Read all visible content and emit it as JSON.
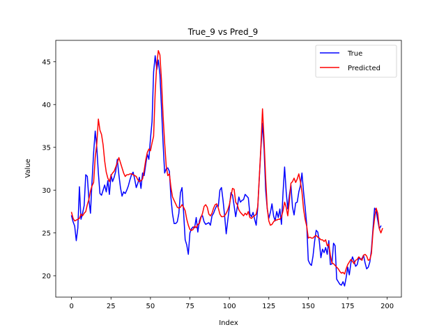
{
  "chart_data": {
    "type": "line",
    "title": "True_9 vs Pred_9",
    "xlabel": "Index",
    "ylabel": "Value",
    "xlim": [
      -10,
      209
    ],
    "ylim": [
      17.5,
      47.5
    ],
    "x_ticks": [
      0,
      25,
      50,
      75,
      100,
      125,
      150,
      175,
      200
    ],
    "y_ticks": [
      20,
      25,
      30,
      35,
      40,
      45
    ],
    "legend_position": "top-right",
    "grid": false,
    "series": [
      {
        "name": "True",
        "color": "#0000ff",
        "values": [
          27.0,
          26.3,
          25.8,
          24.1,
          25.6,
          30.4,
          26.6,
          27.3,
          28.2,
          31.8,
          31.6,
          28.9,
          27.3,
          31.1,
          34.4,
          36.9,
          35.0,
          32.0,
          29.6,
          29.4,
          30.0,
          30.6,
          29.8,
          31.1,
          29.5,
          31.8,
          31.0,
          31.5,
          32.2,
          33.6,
          31.8,
          30.3,
          29.3,
          29.8,
          29.6,
          30.0,
          30.5,
          31.2,
          31.8,
          32.1,
          31.3,
          30.3,
          30.8,
          31.5,
          30.2,
          32.0,
          31.7,
          33.0,
          34.2,
          33.6,
          36.0,
          38.0,
          43.8,
          45.7,
          44.1,
          45.2,
          43.5,
          39.6,
          35.5,
          32.0,
          32.5,
          32.6,
          32.2,
          29.1,
          27.2,
          26.1,
          26.1,
          26.3,
          27.3,
          29.7,
          30.3,
          27.4,
          24.2,
          23.6,
          22.5,
          25.0,
          25.5,
          25.7,
          25.6,
          26.8,
          25.1,
          26.4,
          26.9,
          27.0,
          26.3,
          26.0,
          26.1,
          26.2,
          25.9,
          27.0,
          27.3,
          27.8,
          28.2,
          28.1,
          30.0,
          30.3,
          28.8,
          27.0,
          24.9,
          26.5,
          28.0,
          29.7,
          29.4,
          28.2,
          26.9,
          28.0,
          29.2,
          28.6,
          28.8,
          28.9,
          29.5,
          29.3,
          29.1,
          27.2,
          26.9,
          27.4,
          26.6,
          25.9,
          28.0,
          31.5,
          34.9,
          37.8,
          34.8,
          30.0,
          27.8,
          26.7,
          27.4,
          28.4,
          27.0,
          26.4,
          27.5,
          26.8,
          27.8,
          26.0,
          29.7,
          32.7,
          29.8,
          27.8,
          29.4,
          30.6,
          28.0,
          27.1,
          28.5,
          28.6,
          29.8,
          30.5,
          32.0,
          29.8,
          28.0,
          26.0,
          21.8,
          21.4,
          21.2,
          22.3,
          24.0,
          25.3,
          25.1,
          24.0,
          22.1,
          23.1,
          22.7,
          23.3,
          22.5,
          24.1,
          21.3,
          21.4,
          23.8,
          23.5,
          19.6,
          19.3,
          19.0,
          18.9,
          19.3,
          18.8,
          19.8,
          21.0,
          20.1,
          21.5,
          22.2,
          21.7,
          21.1,
          21.3,
          22.1,
          21.9,
          22.0,
          22.4,
          21.5,
          20.8,
          21.0,
          21.6,
          23.0,
          25.5,
          27.9,
          27.6,
          26.5,
          25.5,
          25.8
        ]
      },
      {
        "name": "Predicted",
        "color": "#ff0000",
        "values": [
          27.4,
          26.7,
          26.4,
          26.5,
          26.6,
          26.7,
          27.2,
          27.0,
          27.3,
          27.5,
          28.3,
          28.9,
          29.9,
          30.5,
          30.9,
          33.8,
          35.4,
          38.3,
          37.0,
          36.5,
          35.3,
          33.4,
          32.1,
          31.4,
          31.0,
          31.7,
          32.0,
          32.2,
          32.7,
          33.2,
          33.8,
          33.2,
          32.6,
          32.0,
          31.6,
          31.8,
          31.8,
          31.9,
          31.9,
          31.8,
          31.7,
          31.6,
          31.2,
          31.0,
          31.1,
          31.3,
          32.3,
          33.5,
          34.4,
          34.8,
          34.6,
          35.5,
          36.3,
          41.4,
          44.7,
          46.3,
          45.8,
          42.8,
          38.7,
          35.5,
          32.8,
          31.7,
          31.9,
          30.3,
          29.2,
          28.8,
          28.4,
          28.0,
          27.9,
          28.0,
          28.3,
          28.0,
          27.6,
          26.6,
          25.9,
          25.4,
          25.3,
          25.4,
          25.8,
          25.6,
          26.0,
          26.1,
          26.8,
          27.3,
          28.1,
          28.3,
          28.0,
          27.2,
          27.0,
          27.3,
          27.9,
          28.3,
          28.4,
          27.9,
          27.2,
          26.9,
          26.9,
          27.0,
          27.3,
          27.7,
          28.3,
          29.3,
          30.2,
          30.1,
          28.6,
          28.3,
          27.7,
          27.4,
          27.2,
          27.0,
          27.3,
          27.1,
          27.5,
          26.8,
          26.7,
          26.9,
          27.0,
          27.2,
          28.1,
          31.6,
          35.2,
          39.5,
          35.8,
          31.4,
          27.9,
          26.4,
          25.9,
          26.0,
          26.3,
          26.5,
          26.5,
          26.6,
          26.6,
          26.9,
          27.6,
          28.6,
          28.0,
          27.0,
          28.7,
          30.8,
          31.0,
          31.4,
          30.9,
          31.3,
          31.9,
          31.0,
          29.8,
          27.8,
          26.6,
          25.8,
          24.4,
          24.5,
          24.4,
          24.4,
          24.6,
          24.7,
          24.5,
          24.4,
          24.2,
          24.2,
          24.0,
          24.2,
          23.5,
          23.7,
          22.4,
          21.5,
          21.4,
          21.2,
          21.0,
          20.8,
          20.5,
          20.3,
          20.4,
          20.2,
          20.8,
          21.3,
          21.6,
          21.9,
          21.7,
          21.4,
          21.8,
          21.9,
          22.2,
          22.0,
          21.8,
          22.4,
          22.5,
          22.3,
          21.8,
          21.9,
          22.6,
          25.1,
          26.7,
          27.9,
          27.3,
          25.5,
          25.0,
          25.5
        ]
      }
    ]
  }
}
